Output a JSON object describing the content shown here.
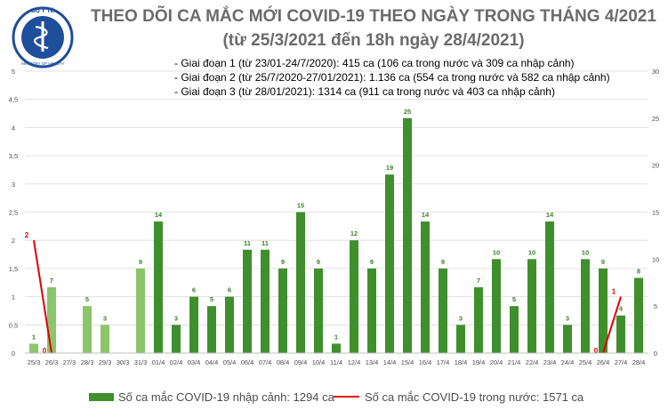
{
  "header": {
    "title": "THEO DÕI CA MẮC MỚI COVID-19 THEO NGÀY TRONG THÁNG 4/2021",
    "subtitle": "(từ 25/3/2021 đến 18h ngày 28/4/2021)",
    "logo_text": [
      "BỘ Y TẾ",
      "MINISTRY OF HEALTH"
    ]
  },
  "notes": [
    "- Giai đoạn 1 (từ 23/01-24/7/2020): 415 ca (106 ca trong nước và 309 ca nhập cảnh)",
    "- Giai đoạn 2 (từ 25/7/2020-27/01/2021): 1.136 ca (554 ca trong nước và 582 ca nhập cảnh)",
    "- Giai đoạn 3 (từ 28/01/2021): 1314 ca (911 ca trong nước và 403 ca nhập cảnh)"
  ],
  "colors": {
    "bar_light": "#8cc56a",
    "bar_dark": "#3f8f2d",
    "line": "#e00000",
    "grid": "#d9d9d9",
    "logo": "#1f4e9a"
  },
  "chart_data": {
    "type": "bar",
    "title": "THEO DÕI CA MẮC MỚI COVID-19 THEO NGÀY TRONG THÁNG 4/2021",
    "categories": [
      "25/3",
      "26/3",
      "27/3",
      "28/3",
      "29/3",
      "30/3",
      "31/3",
      "01/4",
      "02/4",
      "03/4",
      "04/4",
      "05/4",
      "06/4",
      "07/4",
      "08/4",
      "09/4",
      "10/4",
      "11/4",
      "12/4",
      "13/4",
      "14/4",
      "15/4",
      "16/4",
      "17/4",
      "18/4",
      "19/4",
      "20/4",
      "21/4",
      "22/4",
      "23/4",
      "24/4",
      "25/4",
      "26/4",
      "27/4",
      "28/4"
    ],
    "series": [
      {
        "name": "Số ca mắc COVID-19 nhập cảnh: 1294 ca",
        "type": "bar",
        "axis": "right",
        "values": [
          1,
          7,
          null,
          5,
          3,
          null,
          9,
          14,
          3,
          6,
          5,
          6,
          11,
          11,
          9,
          15,
          9,
          1,
          12,
          9,
          19,
          25,
          14,
          9,
          3,
          7,
          10,
          5,
          10,
          14,
          3,
          10,
          9,
          4,
          8
        ]
      },
      {
        "name": "Số ca mắc COVID-19 trong nước: 1571 ca",
        "type": "line",
        "axis": "left",
        "points": [
          {
            "x": "25/3",
            "y": 2
          },
          {
            "x": "26/3",
            "y": 0
          },
          {
            "x": "26/4",
            "y": 0
          },
          {
            "x": "27/4",
            "y": 1
          }
        ]
      }
    ],
    "left_axis": {
      "min": 0,
      "max": 5,
      "ticks": [
        "0",
        "0,5",
        "1",
        "1,5",
        "2",
        "2,5",
        "3",
        "3,5",
        "4",
        "4,5",
        "5"
      ]
    },
    "right_axis": {
      "min": 0,
      "max": 30,
      "ticks": [
        "0",
        "5",
        "10",
        "15",
        "20",
        "25",
        "30"
      ]
    },
    "dark_bars_from": "01/4",
    "grid": true,
    "legend_position": "bottom"
  }
}
